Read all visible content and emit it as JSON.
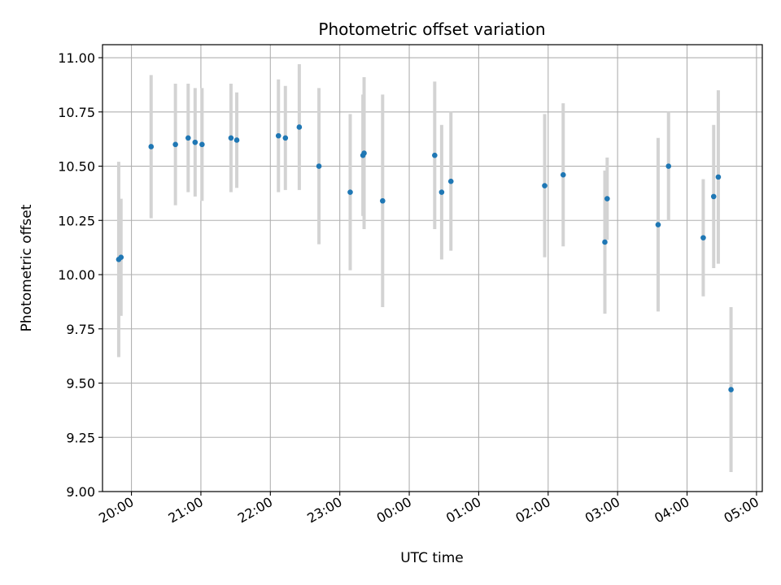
{
  "chart_data": {
    "type": "scatter",
    "title": "Photometric offset variation",
    "xlabel": "UTC time",
    "ylabel": "Photometric offset",
    "ylim": [
      9.0,
      11.06
    ],
    "xlim": [
      "19:35",
      "05:05"
    ],
    "grid": true,
    "x_tick_labels": [
      "20:00",
      "21:00",
      "22:00",
      "23:00",
      "00:00",
      "01:00",
      "02:00",
      "03:00",
      "04:00",
      "05:00"
    ],
    "y_tick_labels": [
      "9.00",
      "9.25",
      "9.50",
      "9.75",
      "10.00",
      "10.25",
      "10.50",
      "10.75",
      "11.00"
    ],
    "y_ticks": [
      9.0,
      9.25,
      9.5,
      9.75,
      10.0,
      10.25,
      10.5,
      10.75,
      11.0
    ],
    "colors": {
      "points": "#1f77b4",
      "error_bars": "#d3d3d3",
      "grid": "#b0b0b0"
    },
    "points": [
      {
        "x": "19:49",
        "y": 10.07,
        "err": 0.45
      },
      {
        "x": "19:51",
        "y": 10.08,
        "err": 0.27
      },
      {
        "x": "20:17",
        "y": 10.59,
        "err": 0.33
      },
      {
        "x": "20:38",
        "y": 10.6,
        "err": 0.28
      },
      {
        "x": "20:49",
        "y": 10.63,
        "err": 0.25
      },
      {
        "x": "20:55",
        "y": 10.61,
        "err": 0.25
      },
      {
        "x": "21:01",
        "y": 10.6,
        "err": 0.26
      },
      {
        "x": "21:26",
        "y": 10.63,
        "err": 0.25
      },
      {
        "x": "21:31",
        "y": 10.62,
        "err": 0.22
      },
      {
        "x": "22:07",
        "y": 10.64,
        "err": 0.26
      },
      {
        "x": "22:13",
        "y": 10.63,
        "err": 0.24
      },
      {
        "x": "22:25",
        "y": 10.68,
        "err": 0.29
      },
      {
        "x": "22:42",
        "y": 10.5,
        "err": 0.36
      },
      {
        "x": "23:09",
        "y": 10.38,
        "err": 0.36
      },
      {
        "x": "23:20",
        "y": 10.55,
        "err": 0.28
      },
      {
        "x": "23:21",
        "y": 10.56,
        "err": 0.35
      },
      {
        "x": "23:37",
        "y": 10.34,
        "err": 0.49
      },
      {
        "x": "00:22",
        "y": 10.55,
        "err": 0.34
      },
      {
        "x": "00:28",
        "y": 10.38,
        "err": 0.31
      },
      {
        "x": "00:36",
        "y": 10.43,
        "err": 0.32
      },
      {
        "x": "01:57",
        "y": 10.41,
        "err": 0.33
      },
      {
        "x": "02:13",
        "y": 10.46,
        "err": 0.33
      },
      {
        "x": "02:49",
        "y": 10.15,
        "err": 0.33
      },
      {
        "x": "02:51",
        "y": 10.35,
        "err": 0.19
      },
      {
        "x": "03:35",
        "y": 10.23,
        "err": 0.4
      },
      {
        "x": "03:44",
        "y": 10.5,
        "err": 0.25
      },
      {
        "x": "04:14",
        "y": 10.17,
        "err": 0.27
      },
      {
        "x": "04:23",
        "y": 10.36,
        "err": 0.33
      },
      {
        "x": "04:27",
        "y": 10.45,
        "err": 0.4
      },
      {
        "x": "04:38",
        "y": 9.47,
        "err": 0.38
      }
    ]
  }
}
